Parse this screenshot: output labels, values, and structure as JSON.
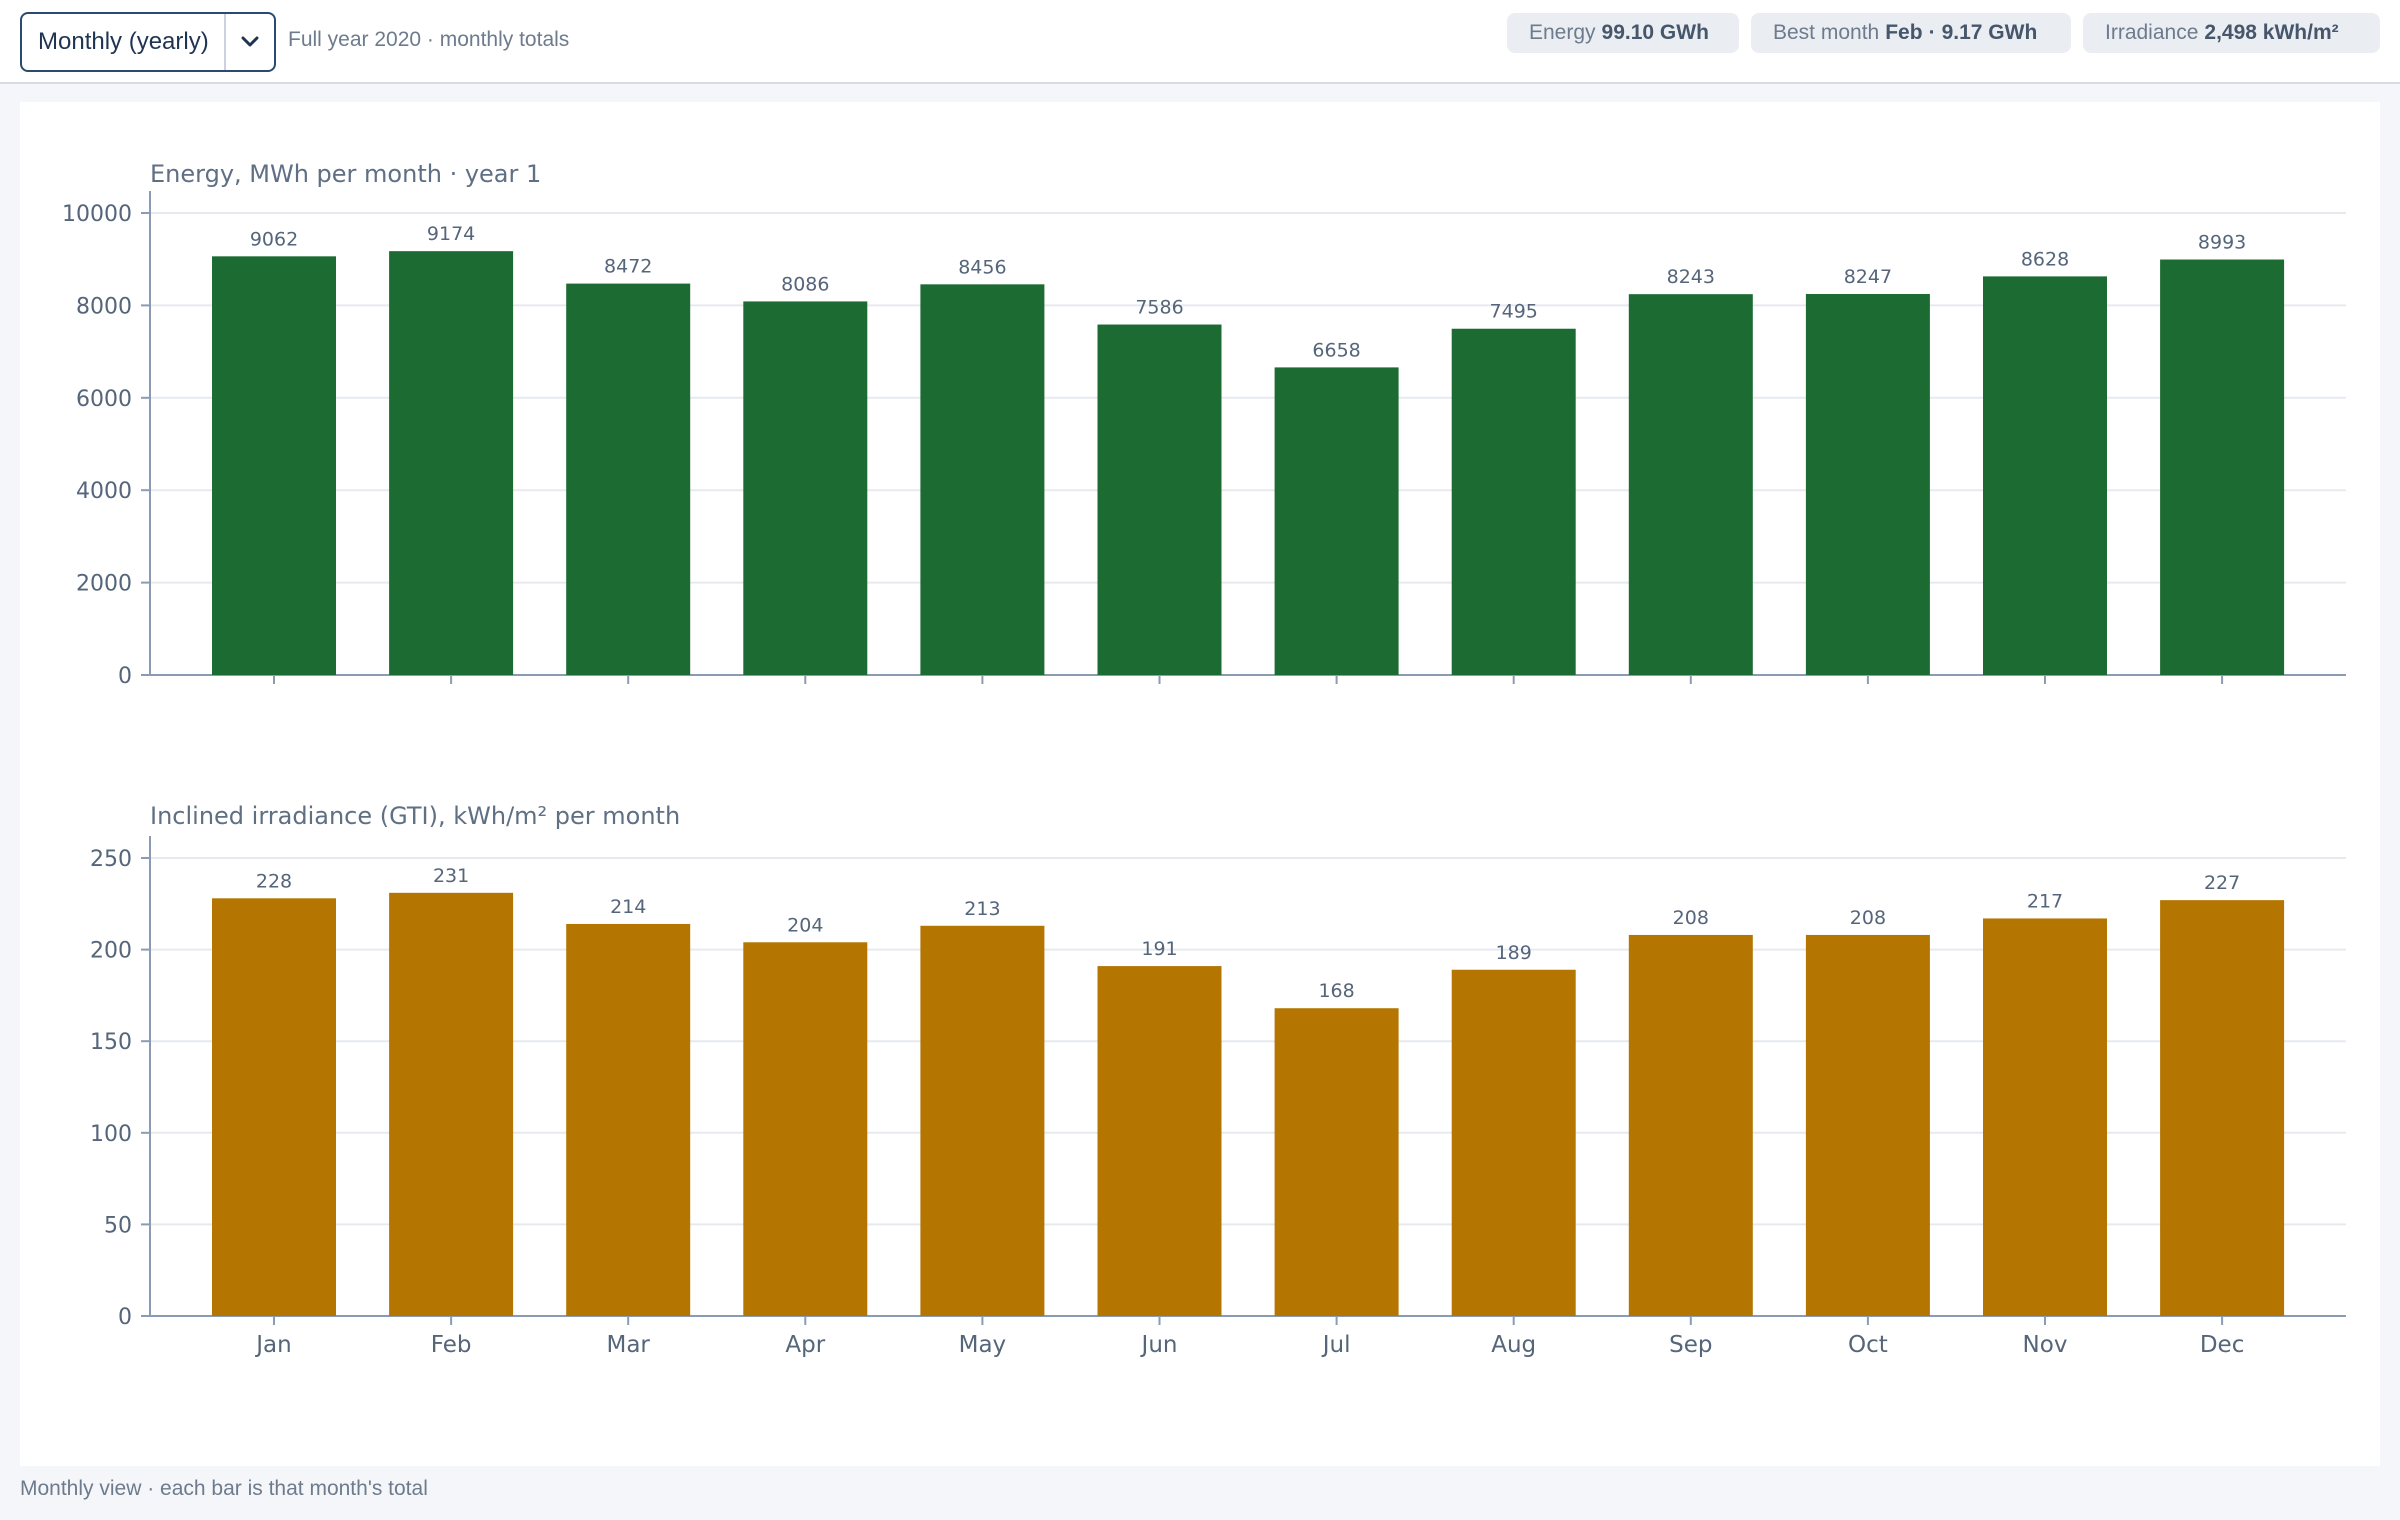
{
  "toolbar": {
    "period_select": "Monthly (yearly)",
    "subtitle": "Full year 2020 · monthly totals"
  },
  "chips": [
    {
      "label": "Energy",
      "value": "99.10 GWh"
    },
    {
      "label": "Best month",
      "value_a": "Feb",
      "sep": "·",
      "value_b": "9.17 GWh"
    },
    {
      "label": "Irradiance",
      "value": "2,498 kWh/m²"
    }
  ],
  "footer": "Monthly view · each bar is that month's total",
  "colors": {
    "energy_bar": "#1c6b32",
    "irradiance_bar": "#b47600",
    "axis": "#8a9bb3",
    "grid": "#e6eaef",
    "title": "#5f6f84",
    "tick_label": "#55657a"
  },
  "icons": {
    "dropdown": "chevron-down-icon"
  },
  "chart_data": [
    {
      "type": "bar",
      "title": "Energy, MWh per month · year 1",
      "categories": [
        "Jan",
        "Feb",
        "Mar",
        "Apr",
        "May",
        "Jun",
        "Jul",
        "Aug",
        "Sep",
        "Oct",
        "Nov",
        "Dec"
      ],
      "values": [
        9062,
        9174,
        8472,
        8086,
        8456,
        7586,
        6658,
        7495,
        8243,
        8247,
        8628,
        8993
      ],
      "ylim": [
        0,
        10000
      ],
      "yticks": [
        0,
        2000,
        4000,
        6000,
        8000,
        10000
      ],
      "show_x_labels": false,
      "grid": true
    },
    {
      "type": "bar",
      "title": "Inclined irradiance (GTI), kWh/m² per month",
      "categories": [
        "Jan",
        "Feb",
        "Mar",
        "Apr",
        "May",
        "Jun",
        "Jul",
        "Aug",
        "Sep",
        "Oct",
        "Nov",
        "Dec"
      ],
      "values": [
        228,
        231,
        214,
        204,
        213,
        191,
        168,
        189,
        208,
        208,
        217,
        227
      ],
      "ylim": [
        0,
        250
      ],
      "yticks": [
        0,
        50,
        100,
        150,
        200,
        250
      ],
      "show_x_labels": true,
      "grid": true
    }
  ]
}
